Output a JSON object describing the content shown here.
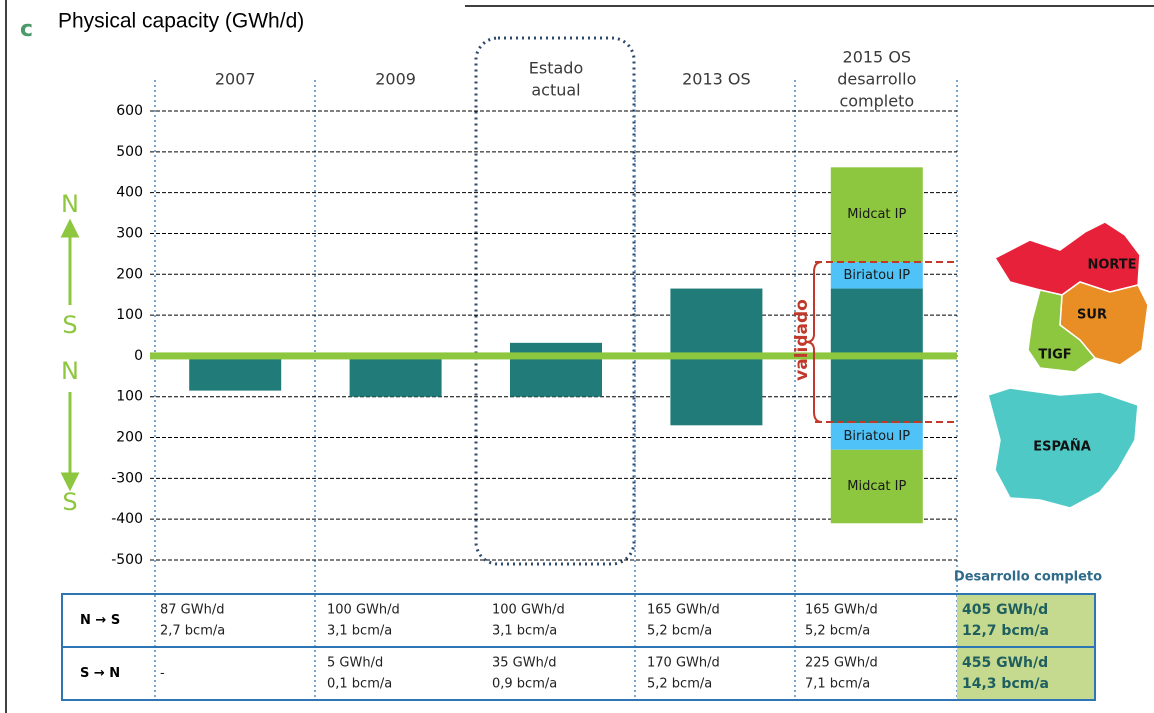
{
  "corner_letter": "c",
  "chart_data": {
    "type": "stacked-bar",
    "title": "Physical capacity (GWh/d)",
    "categories": [
      [
        "2007"
      ],
      [
        "2009"
      ],
      [
        "Estado",
        "actual"
      ],
      [
        "2013 OS"
      ],
      [
        "2015 OS",
        "desarrollo",
        "completo"
      ]
    ],
    "series": [
      {
        "color": "#217b78",
        "values": [
          null,
          null,
          32,
          165,
          165
        ]
      },
      {
        "color": "#217b78",
        "values": [
          -85,
          -100,
          -100,
          -170,
          -165
        ]
      },
      {
        "name": "Biriatou IP",
        "color": "#4fc3f7",
        "values": [
          null,
          null,
          null,
          null,
          65
        ]
      },
      {
        "name": "Biriatou IP",
        "color": "#4fc3f7",
        "values": [
          null,
          null,
          null,
          null,
          -65
        ]
      },
      {
        "name": "Midcat IP",
        "color": "#8dc63f",
        "values": [
          null,
          null,
          null,
          null,
          232
        ]
      },
      {
        "name": "Midcat IP",
        "color": "#8dc63f",
        "values": [
          null,
          null,
          null,
          null,
          -180
        ]
      }
    ],
    "ylim": [
      -500,
      600
    ],
    "yticks": [
      600,
      500,
      400,
      300,
      200,
      100,
      0,
      {
        "value": -100,
        "label": "100"
      },
      {
        "value": -200,
        "label": "200"
      },
      -300,
      -400,
      -500
    ],
    "grid": true,
    "direction_labels": [
      "N",
      "S",
      "N",
      "S"
    ],
    "annotation": "validado"
  },
  "map": {
    "regions": [
      "NORTE",
      "SUR",
      "TIGF",
      "ESPAÑA"
    ]
  },
  "table": {
    "extra_header": "Desarrollo completo",
    "rows": [
      {
        "label": "N → S",
        "cells": [
          [
            "87 GWh/d",
            "2,7 bcm/a"
          ],
          [
            "100 GWh/d",
            "3,1 bcm/a"
          ],
          [
            "100 GWh/d",
            "3,1 bcm/a"
          ],
          [
            "165 GWh/d",
            "5,2 bcm/a"
          ],
          [
            "165 GWh/d",
            "5,2 bcm/a"
          ],
          [
            "405 GWh/d",
            "12,7 bcm/a"
          ]
        ]
      },
      {
        "label": "S → N",
        "cells": [
          [
            "-"
          ],
          [
            "5 GWh/d",
            "0,1 bcm/a"
          ],
          [
            "35 GWh/d",
            "0,9 bcm/a"
          ],
          [
            "170 GWh/d",
            "5,2 bcm/a"
          ],
          [
            "225 GWh/d",
            "7,1 bcm/a"
          ],
          [
            "455 GWh/d",
            "14,3 bcm/a"
          ]
        ]
      }
    ]
  }
}
